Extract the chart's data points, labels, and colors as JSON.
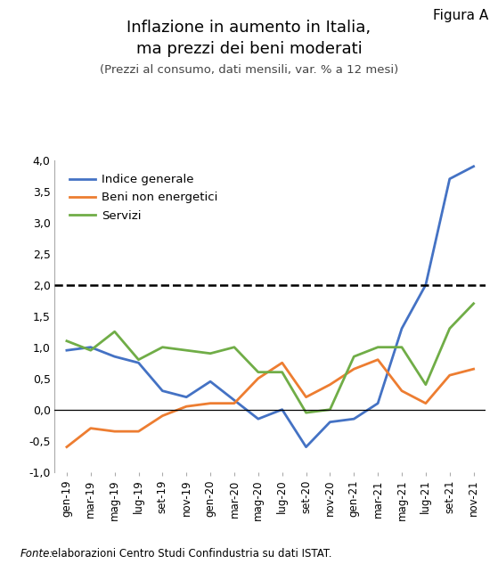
{
  "title_line1": "Inflazione in aumento in Italia,",
  "title_line2": "ma prezzi dei beni moderati",
  "subtitle": "(Prezzi al consumo, dati mensili, var. % a 12 mesi)",
  "figura": "Figura A",
  "fonte_italic": "Fonte:",
  "fonte_normal": " elaborazioni Centro Studi Confindustria su dati ISTAT.",
  "labels": [
    "gen-19",
    "mar-19",
    "mag-19",
    "lug-19",
    "set-19",
    "nov-19",
    "gen-20",
    "mar-20",
    "mag-20",
    "lug-20",
    "set-20",
    "nov-20",
    "gen-21",
    "mar-21",
    "mag-21",
    "lug-21",
    "set-21",
    "nov-21"
  ],
  "indice_generale": [
    0.95,
    1.0,
    0.85,
    0.75,
    0.3,
    0.2,
    0.45,
    0.15,
    -0.15,
    0.0,
    -0.6,
    -0.2,
    -0.15,
    0.1,
    1.3,
    2.0,
    3.7,
    3.9
  ],
  "beni_non_energetici": [
    -0.6,
    -0.3,
    -0.35,
    -0.35,
    -0.1,
    0.05,
    0.1,
    0.1,
    0.5,
    0.75,
    0.2,
    0.4,
    0.65,
    0.8,
    0.3,
    0.1,
    0.55,
    0.65
  ],
  "servizi": [
    1.1,
    0.95,
    1.25,
    0.8,
    1.0,
    0.95,
    0.9,
    1.0,
    0.6,
    0.6,
    -0.05,
    0.0,
    0.85,
    1.0,
    1.0,
    0.4,
    1.3,
    1.7
  ],
  "color_indice": "#4472C4",
  "color_beni": "#ED7D31",
  "color_servizi": "#70AD47",
  "ylim": [
    -1.0,
    4.0
  ],
  "yticks": [
    -1.0,
    -0.5,
    0.0,
    0.5,
    1.0,
    1.5,
    2.0,
    2.5,
    3.0,
    3.5,
    4.0
  ],
  "ytick_labels": [
    "-1,0",
    "-0,5",
    "0,0",
    "0,5",
    "1,0",
    "1,5",
    "2,0",
    "2,5",
    "3,0",
    "3,5",
    "4,0"
  ],
  "dashed_line_y": 2.0,
  "legend_indice": "Indice generale",
  "legend_beni": "Beni non energetici",
  "legend_servizi": "Servizi"
}
